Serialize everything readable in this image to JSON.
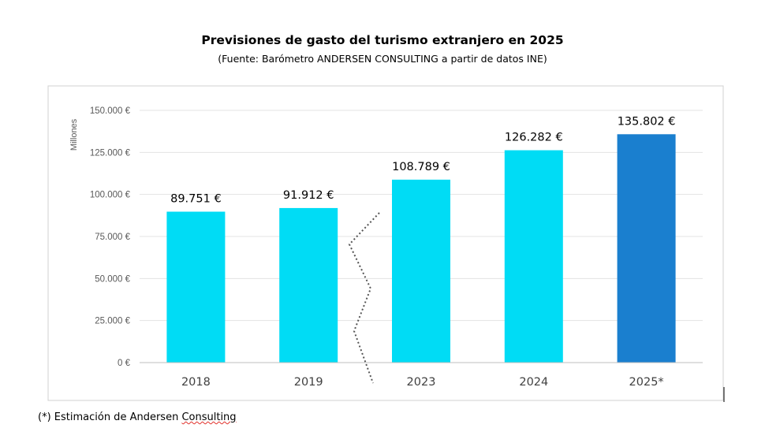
{
  "title": "Previsiones de gasto del turismo extranjero en 2025",
  "subtitle": "(Fuente: Barómetro ANDERSEN CONSULTING a partir de datos INE)",
  "footnote": {
    "prefix": "(*) Estimación de Andersen ",
    "underlined": "Consulting"
  },
  "chart_data": {
    "type": "bar",
    "title": "Previsiones de gasto del turismo extranjero en 2025",
    "subtitle": "(Fuente: Barómetro ANDERSEN CONSULTING a partir de datos INE)",
    "ylabel": "Millones",
    "xlabel": "",
    "categories": [
      "2018",
      "2019",
      "2023",
      "2024",
      "2025*"
    ],
    "values": [
      89751,
      91912,
      108789,
      126282,
      135802
    ],
    "data_labels": [
      "89.751 €",
      "91.912 €",
      "108.789 €",
      "126.282 €",
      "135.802 €"
    ],
    "ylim": [
      0,
      150000
    ],
    "yticks": [
      0,
      25000,
      50000,
      75000,
      100000,
      125000,
      150000
    ],
    "ytick_labels": [
      "0 €",
      "25.000 €",
      "50.000 €",
      "75.000 €",
      "100.000 €",
      "125.000 €",
      "150.000 €"
    ],
    "colors": [
      "#00dcf5",
      "#00dcf5",
      "#00dcf5",
      "#00dcf5",
      "#1a7fcf"
    ],
    "axis_break_after": "2019",
    "grid": true,
    "legend": "none"
  }
}
